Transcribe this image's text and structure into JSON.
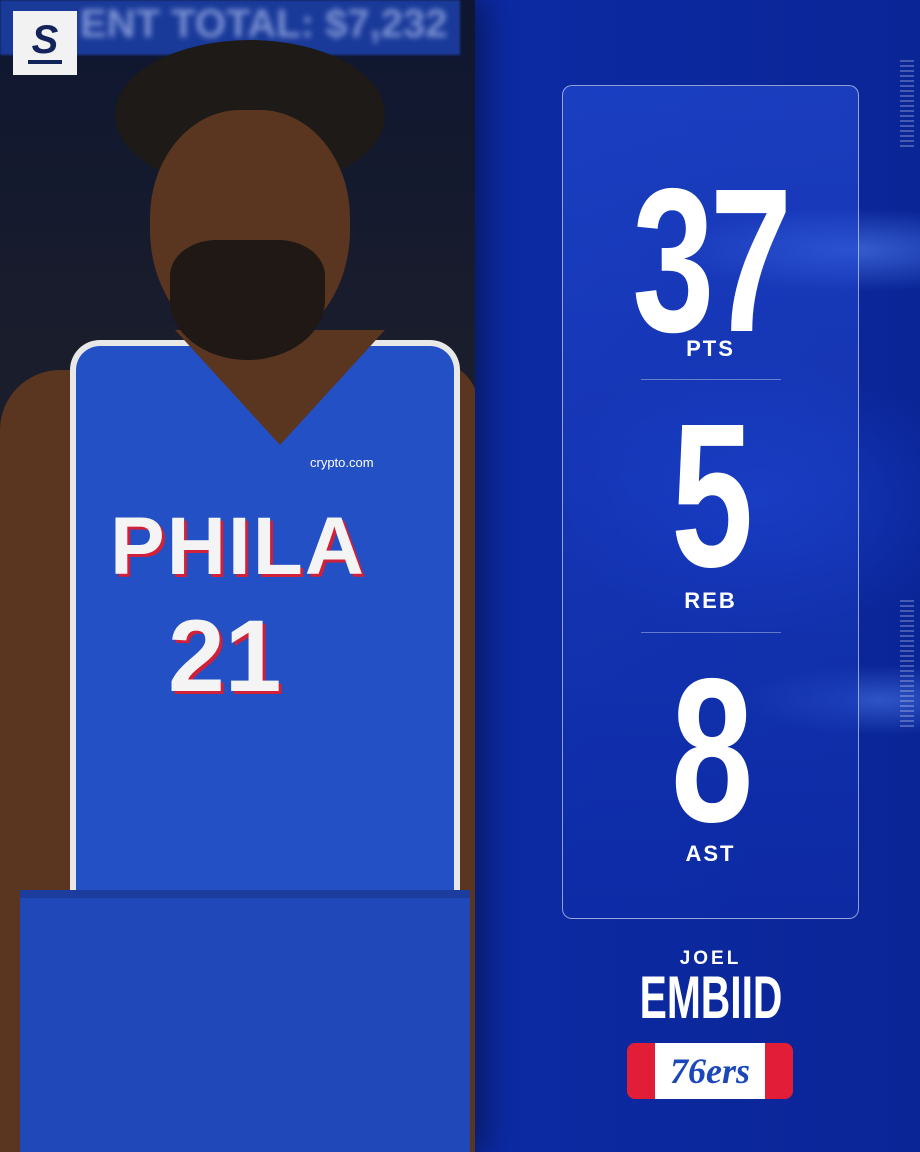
{
  "brand": {
    "logo_letter": "S"
  },
  "photo": {
    "background_banner": "ENT TOTAL: $7,232",
    "jersey_wordmark": "PHILA",
    "jersey_number": "21",
    "jersey_sponsor": "crypto.com"
  },
  "stats": [
    {
      "value": "37",
      "label": "PTS"
    },
    {
      "value": "5",
      "label": "REB"
    },
    {
      "value": "8",
      "label": "AST"
    }
  ],
  "player": {
    "first_name": "JOEL",
    "last_name": "EMBIID"
  },
  "team": {
    "logo_text": "76ers",
    "primary_color": "#1b47b8",
    "accent_color": "#e21d38"
  },
  "colors": {
    "background": "#0c2aa3",
    "card_border": "#ffffff"
  }
}
